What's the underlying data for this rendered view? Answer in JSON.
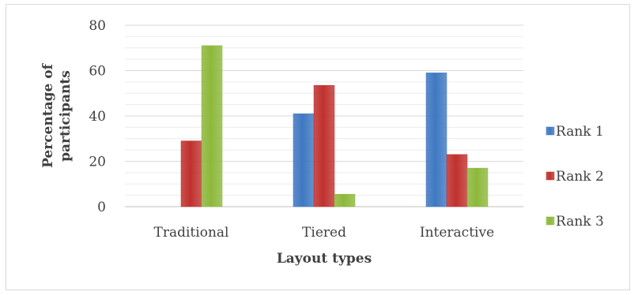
{
  "chart_data": {
    "type": "bar",
    "title": "",
    "xlabel": "Layout types",
    "ylabel": "Percentage of participants",
    "ylabel_lines": [
      "Percentage of",
      "participants"
    ],
    "categories": [
      "Traditional",
      "Tiered",
      "Interactive"
    ],
    "series": [
      {
        "name": "Rank 1",
        "values": [
          0,
          41,
          59
        ],
        "color": "#3f78c2"
      },
      {
        "name": "Rank 2",
        "values": [
          29,
          53.5,
          23
        ],
        "color": "#c0312e"
      },
      {
        "name": "Rank 3",
        "values": [
          71,
          5.5,
          17
        ],
        "color": "#8db83b"
      }
    ],
    "ylim": [
      0,
      80
    ],
    "yticks": [
      0,
      20,
      40,
      60,
      80
    ],
    "grid": true,
    "legend_position": "right"
  }
}
